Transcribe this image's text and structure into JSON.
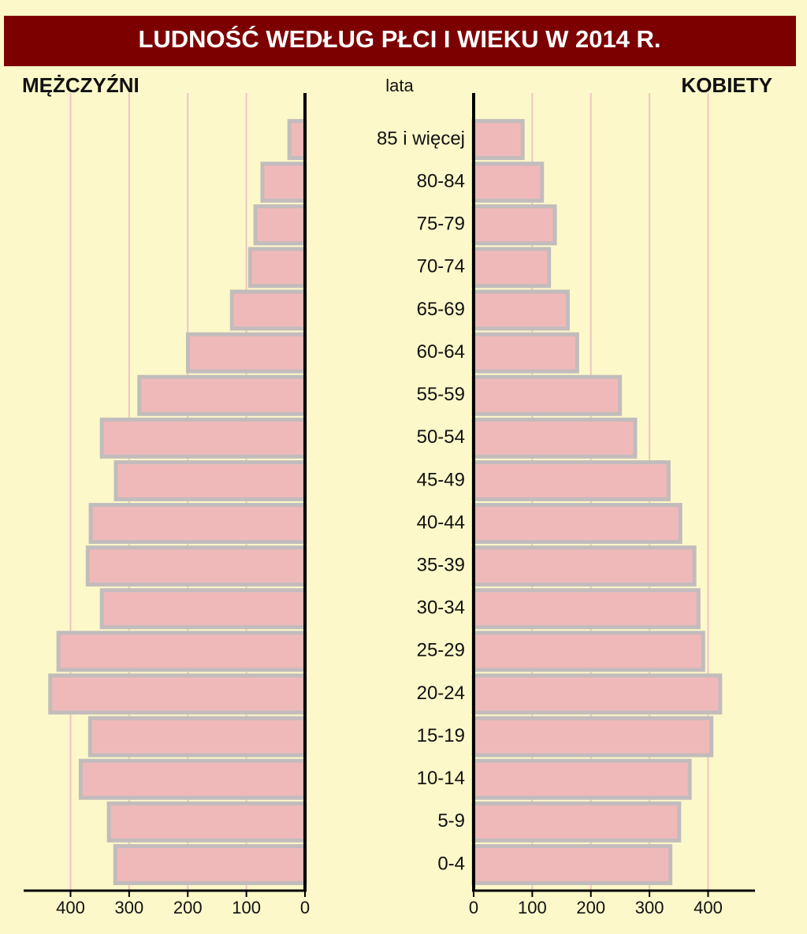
{
  "chart_data": {
    "type": "population_pyramid",
    "title": "LUDNOŚĆ WEDŁUG PŁCI I WIEKU  W 2014 R.",
    "category_axis_label": "lata",
    "categories": [
      "85 i więcej",
      "80-84",
      "75-79",
      "70-74",
      "65-69",
      "60-64",
      "55-59",
      "50-54",
      "45-49",
      "40-44",
      "35-39",
      "30-34",
      "25-29",
      "20-24",
      "15-19",
      "10-14",
      "5-9",
      "0-4"
    ],
    "series": [
      {
        "name": "MĘŻCZYŹNI",
        "color": "#f0b9b9",
        "values": [
          30,
          76,
          88,
          97,
          128,
          203,
          286,
          350,
          326,
          369,
          374,
          350,
          424,
          438,
          370,
          386,
          338,
          327
        ]
      },
      {
        "name": "KOBIETY",
        "color": "#f0b9b9",
        "values": [
          87,
          120,
          142,
          132,
          164,
          180,
          253,
          279,
          336,
          356,
          380,
          387,
          395,
          424,
          409,
          372,
          354,
          339
        ]
      }
    ],
    "xlim": [
      0,
      480
    ],
    "xticks": [
      0,
      100,
      200,
      300,
      400
    ],
    "grid": true
  }
}
